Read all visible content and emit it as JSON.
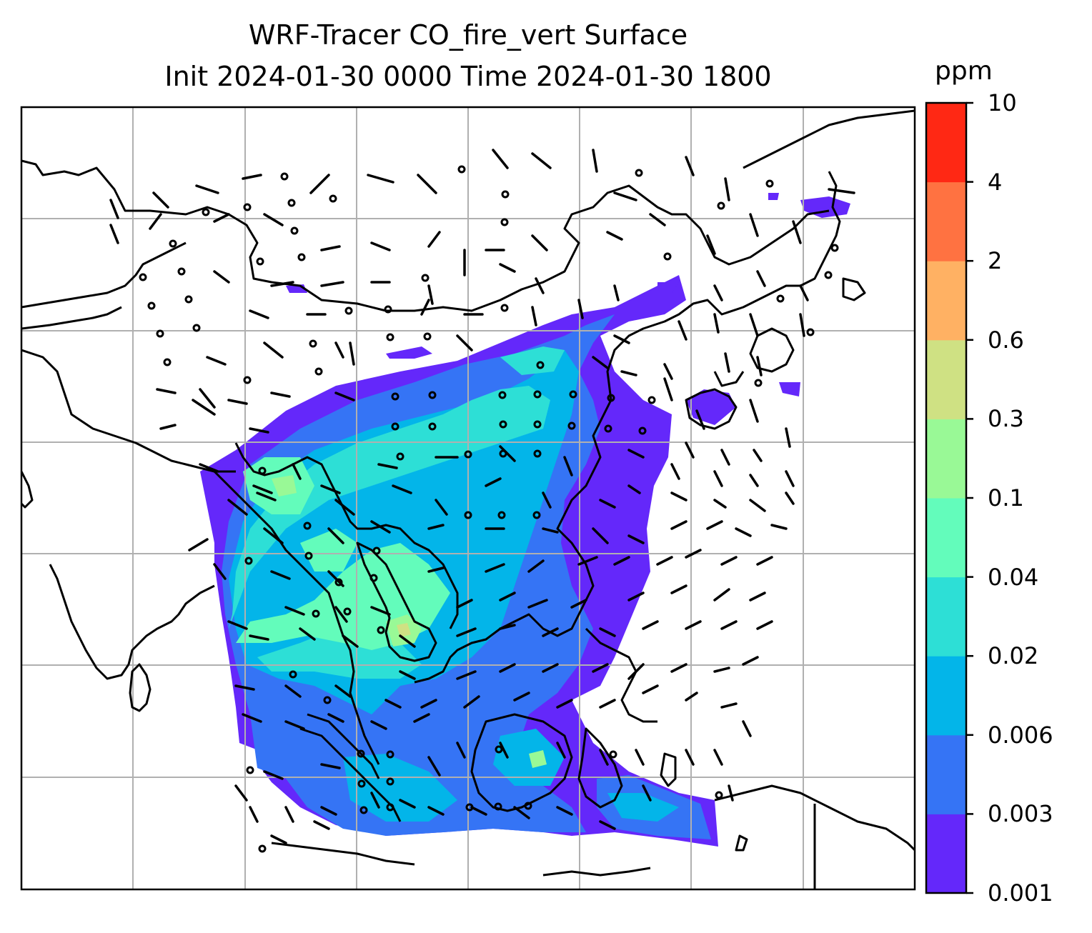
{
  "title": {
    "line1": "WRF-Tracer CO_fire_vert Surface",
    "line2": "Init 2024-01-30 0000 Time 2024-01-30 1800"
  },
  "colorbar": {
    "unit": "ppm",
    "levels": [
      "0.001",
      "0.003",
      "0.006",
      "0.02",
      "0.04",
      "0.1",
      "0.3",
      "0.6",
      "2",
      "4",
      "10"
    ],
    "colors": [
      "#6428fa",
      "#3574f5",
      "#03b5e9",
      "#2ddfd6",
      "#63fcbb",
      "#99f996",
      "#cfe183",
      "#ffb163",
      "#ff7241",
      "#ff2814"
    ]
  },
  "map": {
    "gridlines": true,
    "region": "South and East Asia, Maritime Continent",
    "field": "CO fire tracer concentration with wind barbs"
  }
}
